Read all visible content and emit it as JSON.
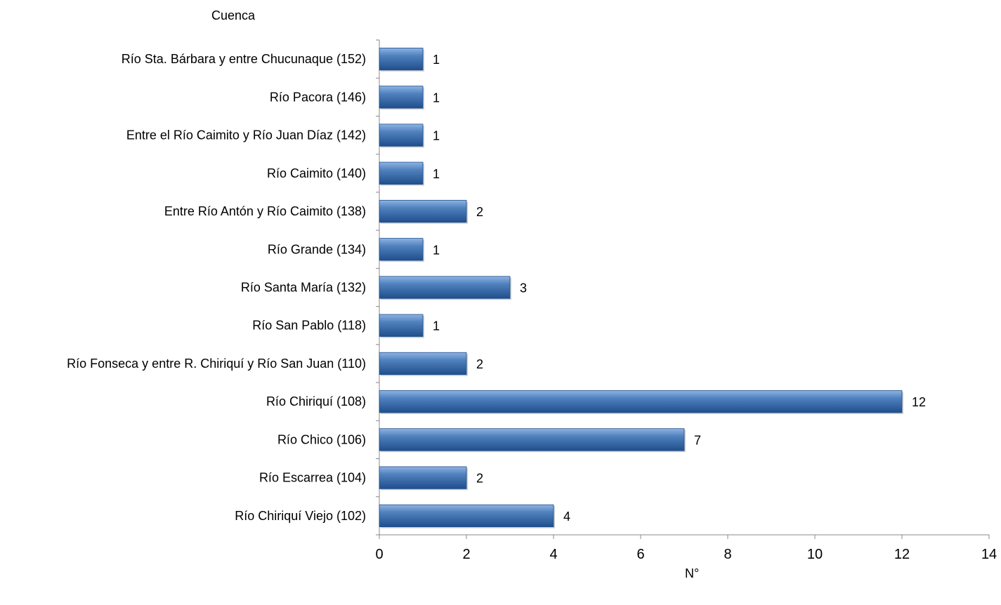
{
  "chart_data": {
    "type": "bar",
    "orientation": "horizontal",
    "title": "",
    "xlabel": "N°",
    "ylabel": "Cuenca",
    "categories": [
      "Río Chiriquí Viejo (102)",
      "Río Escarrea (104)",
      "Río Chico (106)",
      "Río Chiriquí (108)",
      "Río Fonseca y entre R. Chiriquí y Río San Juan (110)",
      "Río San Pablo (118)",
      "Río Santa María (132)",
      "Río Grande (134)",
      "Entre Río Antón y Río Caimito (138)",
      "Río Caimito (140)",
      "Entre el Río Caimito y Río Juan Díaz (142)",
      "Río Pacora (146)",
      "Río Sta. Bárbara y entre Chucunaque (152)"
    ],
    "values": [
      4,
      2,
      7,
      12,
      2,
      1,
      3,
      1,
      2,
      1,
      1,
      1,
      1
    ],
    "xlim": [
      0,
      14
    ],
    "xticks": [
      0,
      2,
      4,
      6,
      8,
      10,
      12,
      14
    ],
    "grid": false,
    "legend": "none",
    "data_labels": true,
    "colors": {
      "bar_light": "#8fb4e3",
      "bar_mid": "#4f81bd",
      "bar_dark": "#1f4e8c",
      "axis": "#888888"
    }
  }
}
